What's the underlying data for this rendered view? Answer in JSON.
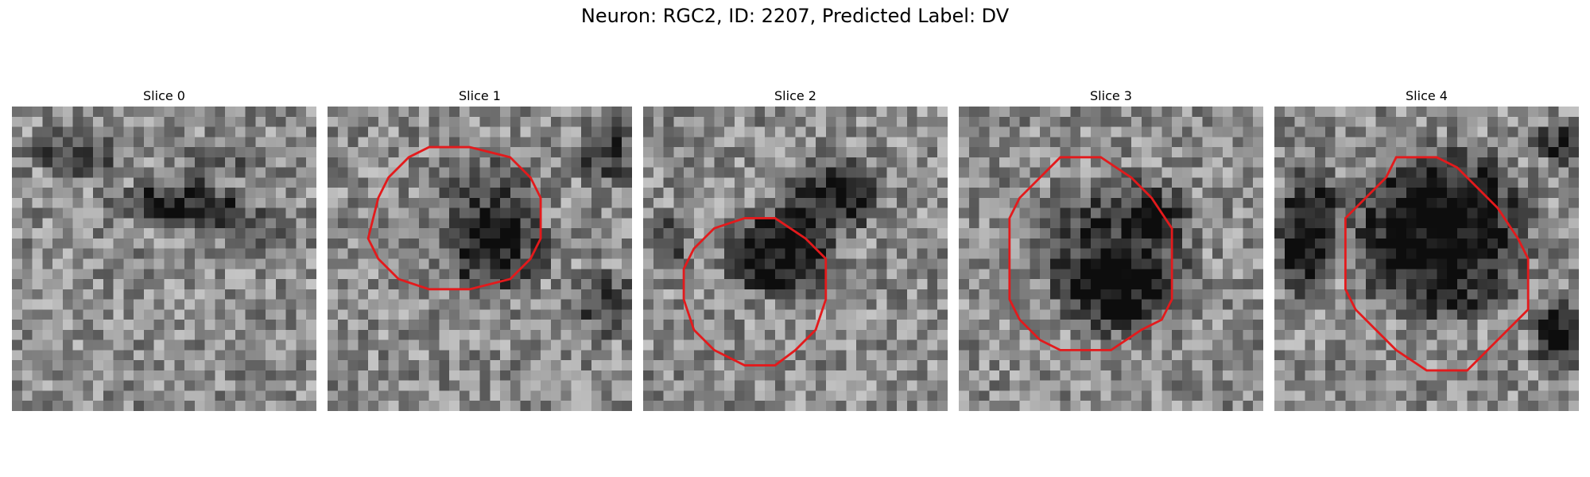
{
  "title": "Neuron: RGC2, ID: 2207, Predicted Label: DV",
  "contour_color": "#e31a1c",
  "colormap": "gray",
  "panels": [
    {
      "label": "Slice 0",
      "has_contour": false,
      "seed": 11,
      "dark_blob": "diagonal-band"
    },
    {
      "label": "Slice 1",
      "has_contour": true,
      "seed": 23,
      "dark_blob": "lower-right"
    },
    {
      "label": "Slice 2",
      "has_contour": true,
      "seed": 37,
      "dark_blob": "center"
    },
    {
      "label": "Slice 3",
      "has_contour": true,
      "seed": 53,
      "dark_blob": "center-right"
    },
    {
      "label": "Slice 4",
      "has_contour": true,
      "seed": 71,
      "dark_blob": "large-center"
    }
  ]
}
